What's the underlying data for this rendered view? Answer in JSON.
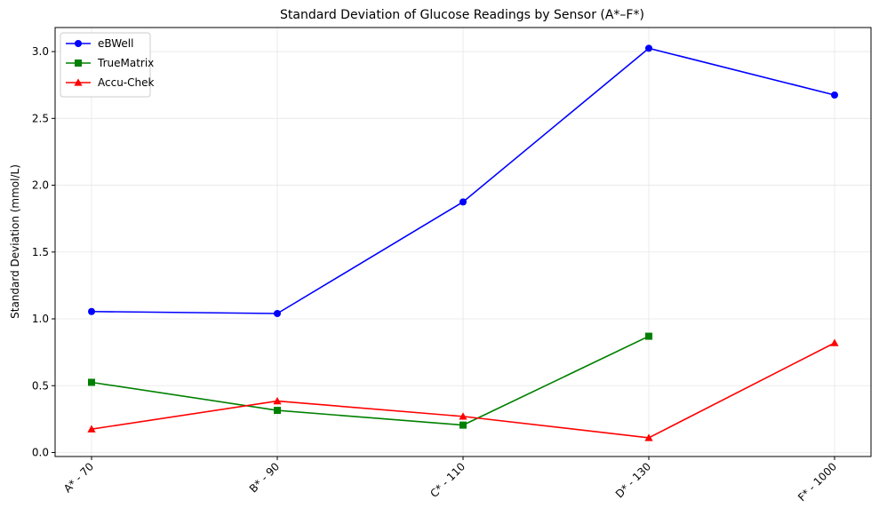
{
  "chart_data": {
    "type": "line",
    "title": "Standard Deviation of Glucose Readings by Sensor (A*–F*)",
    "xlabel": "",
    "ylabel": "Standard Deviation (mmol/L)",
    "categories": [
      "A* - 70",
      "B* - 90",
      "C* - 110",
      "D* - 130",
      "F* - 1000"
    ],
    "ylim": [
      -0.03,
      3.18
    ],
    "yticks": [
      0.0,
      0.5,
      1.0,
      1.5,
      2.0,
      2.5,
      3.0
    ],
    "ytick_labels": [
      "0.0",
      "0.5",
      "1.0",
      "1.5",
      "2.0",
      "2.5",
      "3.0"
    ],
    "grid": true,
    "legend_position": "top-left",
    "series": [
      {
        "name": "eBWell",
        "color": "#0000ff",
        "marker": "circle",
        "values": [
          1.055,
          1.04,
          1.875,
          3.025,
          2.675
        ]
      },
      {
        "name": "TrueMatrix",
        "color": "#008000",
        "marker": "square",
        "values": [
          0.525,
          0.315,
          0.205,
          0.87,
          null
        ]
      },
      {
        "name": "Accu-Chek",
        "color": "#ff0000",
        "marker": "triangle",
        "values": [
          0.175,
          0.385,
          0.27,
          0.11,
          0.82
        ]
      }
    ]
  }
}
